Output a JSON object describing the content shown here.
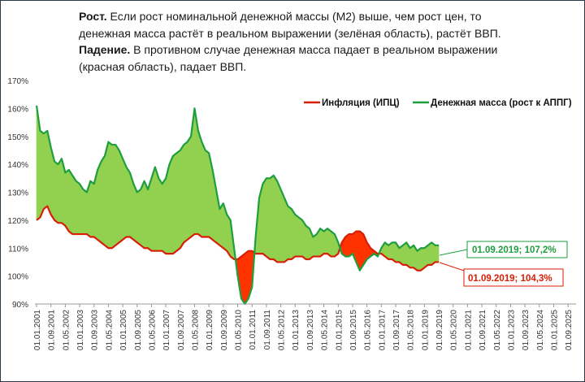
{
  "description": {
    "growth_title": "Рост.",
    "growth_text": " Если рост номинальной  денежной массы (М2) выше, чем рост цен,  то денежная масса растёт в реальном выражении (зелёная область), растёт ВВП.",
    "fall_title": "Падение.",
    "fall_text": " В противном случае денежная масса падает в реальном выражении (красная область), падает ВВП."
  },
  "colors": {
    "inflation_line": "#d81e05",
    "money_line": "#1e9e3e",
    "green_area": "#92d050",
    "red_area": "#ff3300",
    "axis": "#999999"
  },
  "legend": {
    "inflation": "Инфляция (ИПЦ)",
    "money": "Денежная масса (рост к АППГ)"
  },
  "annotations": {
    "money_last": "01.09.2019; 107,2%",
    "inflation_last": "01.09.2019; 104,3%"
  },
  "chart_data": {
    "type": "area",
    "title": "",
    "xlabel": "",
    "ylabel": "",
    "ylim": [
      90,
      170
    ],
    "yticks": [
      "90%",
      "100%",
      "110%",
      "120%",
      "130%",
      "140%",
      "150%",
      "160%",
      "170%"
    ],
    "xticks": [
      "01.01.2001",
      "01.09.2001",
      "01.05.2002",
      "01.01.2003",
      "01.09.2003",
      "01.05.2004",
      "01.01.2005",
      "01.09.2005",
      "01.05.2006",
      "01.01.2007",
      "01.09.2007",
      "01.05.2008",
      "01.01.2009",
      "01.09.2009",
      "01.05.2010",
      "01.01.2011",
      "01.09.2011",
      "01.05.2012",
      "01.01.2013",
      "01.09.2013",
      "01.05.2014",
      "01.01.2015",
      "01.09.2015",
      "01.05.2016",
      "01.01.2017",
      "01.09.2017",
      "01.05.2018",
      "01.01.2019",
      "01.09.2019",
      "01.05.2020",
      "01.01.2021",
      "01.09.2021",
      "01.05.2022",
      "01.01.2023",
      "01.09.2023",
      "01.05.2024",
      "01.01.2025",
      "01.09.2025"
    ],
    "grid": false,
    "legend_position": "top-right",
    "x": [
      "2001-01",
      "2001-03",
      "2001-05",
      "2001-07",
      "2001-09",
      "2001-11",
      "2002-01",
      "2002-03",
      "2002-05",
      "2002-07",
      "2002-09",
      "2002-11",
      "2003-01",
      "2003-03",
      "2003-05",
      "2003-07",
      "2003-09",
      "2003-11",
      "2004-01",
      "2004-03",
      "2004-05",
      "2004-07",
      "2004-09",
      "2004-11",
      "2005-01",
      "2005-03",
      "2005-05",
      "2005-07",
      "2005-09",
      "2005-11",
      "2006-01",
      "2006-03",
      "2006-05",
      "2006-07",
      "2006-09",
      "2006-11",
      "2007-01",
      "2007-03",
      "2007-05",
      "2007-07",
      "2007-09",
      "2007-11",
      "2008-01",
      "2008-03",
      "2008-05",
      "2008-07",
      "2008-09",
      "2008-11",
      "2009-01",
      "2009-03",
      "2009-05",
      "2009-07",
      "2009-09",
      "2009-11",
      "2010-01",
      "2010-03",
      "2010-05",
      "2010-07",
      "2010-09",
      "2010-11",
      "2011-01",
      "2011-03",
      "2011-05",
      "2011-07",
      "2011-09",
      "2011-11",
      "2012-01",
      "2012-03",
      "2012-05",
      "2012-07",
      "2012-09",
      "2012-11",
      "2013-01",
      "2013-03",
      "2013-05",
      "2013-07",
      "2013-09",
      "2013-11",
      "2014-01",
      "2014-03",
      "2014-05",
      "2014-07",
      "2014-09",
      "2014-11",
      "2015-01",
      "2015-03",
      "2015-05",
      "2015-07",
      "2015-09",
      "2015-11",
      "2016-01",
      "2016-03",
      "2016-05",
      "2016-07",
      "2016-09",
      "2016-11",
      "2017-01",
      "2017-03",
      "2017-05",
      "2017-07",
      "2017-09",
      "2017-11",
      "2018-01",
      "2018-03",
      "2018-05",
      "2018-07",
      "2018-09",
      "2018-11",
      "2019-01",
      "2019-03",
      "2019-05",
      "2019-07",
      "2019-09"
    ],
    "series": [
      {
        "name": "Денежная масса (рост к АППГ)",
        "color": "#1e9e3e",
        "values": [
          161,
          152,
          151,
          152,
          146,
          141,
          140,
          142,
          137,
          138,
          136,
          134,
          133,
          131,
          130,
          134,
          133,
          138,
          141,
          143,
          148,
          147,
          147,
          145,
          142,
          139,
          137,
          133,
          130,
          131,
          134,
          131,
          135,
          139,
          135,
          133,
          135,
          140,
          143,
          144,
          145,
          147,
          148,
          150,
          160,
          152,
          148,
          145,
          144,
          138,
          131,
          124,
          126,
          122,
          120,
          110,
          100,
          92,
          90,
          92,
          96,
          114,
          128,
          133,
          135,
          135,
          136,
          134,
          131,
          128,
          125,
          124,
          122,
          121,
          120,
          118,
          117,
          114,
          115,
          117,
          116,
          117,
          116,
          115,
          112,
          108,
          107,
          107,
          108,
          105,
          102,
          104,
          106,
          107,
          108,
          107,
          110,
          112,
          111,
          112,
          112,
          110,
          111,
          112,
          110,
          111,
          109,
          110,
          110,
          111,
          112,
          111,
          111,
          109,
          107.2
        ],
        "_note": "values after 2015 continue bi-monthly"
      },
      {
        "name": "Инфляция (ИПЦ)",
        "color": "#d81e05",
        "values": [
          120,
          121,
          124,
          125,
          122,
          120,
          119,
          119,
          118,
          116,
          115,
          115,
          115,
          115,
          115,
          114,
          114,
          113,
          112,
          111,
          110,
          110,
          111,
          112,
          113,
          114,
          114,
          113,
          112,
          111,
          110,
          110,
          109,
          109,
          109,
          109,
          108,
          108,
          108,
          109,
          110,
          112,
          113,
          114,
          115,
          115,
          114,
          114,
          114,
          113,
          112,
          111,
          110,
          109,
          107,
          106,
          106,
          107,
          108,
          109,
          109,
          108,
          108,
          108,
          107,
          106,
          106,
          105,
          105,
          105,
          106,
          106,
          107,
          107,
          107,
          106,
          106,
          107,
          107,
          107,
          108,
          108,
          107,
          107,
          108,
          112,
          114,
          115,
          115,
          116,
          116,
          115,
          112,
          110,
          109,
          108,
          108,
          107,
          106,
          106,
          105,
          105,
          104,
          104,
          103,
          103,
          102,
          102,
          103,
          104,
          104,
          105,
          105,
          104.5,
          104.3
        ]
      }
    ]
  }
}
